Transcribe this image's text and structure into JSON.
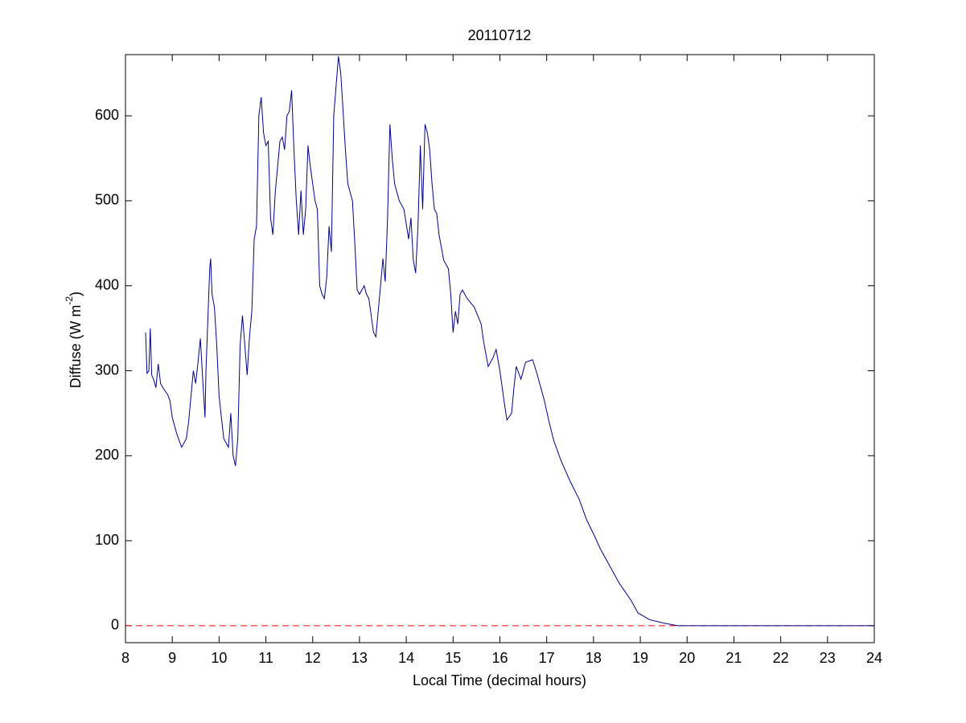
{
  "chart_data": {
    "type": "line",
    "title": "20110712",
    "xlabel": "Local Time (decimal hours)",
    "ylabel": {
      "text": "Diffuse (W m",
      "sup": "-2",
      "tail": ")"
    },
    "xlim": [
      8,
      24
    ],
    "xticks": [
      8,
      9,
      10,
      11,
      12,
      13,
      14,
      15,
      16,
      17,
      18,
      19,
      20,
      21,
      22,
      23,
      24
    ],
    "ylim": [
      -20,
      672
    ],
    "yticks": [
      0,
      100,
      200,
      300,
      400,
      500,
      600
    ],
    "grid": false,
    "reference_line": {
      "value": 0,
      "color": "#ff0000",
      "style": "dashed"
    },
    "series": [
      {
        "color": "#00008b",
        "x": [
          8.43,
          8.46,
          8.5,
          8.53,
          8.56,
          8.6,
          8.65,
          8.7,
          8.75,
          8.8,
          8.9,
          8.95,
          9.0,
          9.1,
          9.2,
          9.3,
          9.35,
          9.45,
          9.5,
          9.55,
          9.6,
          9.65,
          9.7,
          9.72,
          9.8,
          9.82,
          9.85,
          9.9,
          9.95,
          10.0,
          10.1,
          10.15,
          10.2,
          10.25,
          10.3,
          10.35,
          10.4,
          10.45,
          10.5,
          10.55,
          10.6,
          10.65,
          10.7,
          10.75,
          10.8,
          10.85,
          10.9,
          10.95,
          11.0,
          11.05,
          11.1,
          11.15,
          11.2,
          11.3,
          11.35,
          11.4,
          11.45,
          11.5,
          11.55,
          11.6,
          11.65,
          11.7,
          11.75,
          11.8,
          11.85,
          11.9,
          11.95,
          12.0,
          12.05,
          12.1,
          12.15,
          12.2,
          12.25,
          12.3,
          12.35,
          12.4,
          12.45,
          12.55,
          12.6,
          12.7,
          12.75,
          12.85,
          12.9,
          12.95,
          13.0,
          13.1,
          13.15,
          13.2,
          13.3,
          13.35,
          13.45,
          13.5,
          13.55,
          13.6,
          13.65,
          13.7,
          13.75,
          13.85,
          13.95,
          14.05,
          14.1,
          14.15,
          14.2,
          14.25,
          14.3,
          14.35,
          14.4,
          14.45,
          14.5,
          14.55,
          14.6,
          14.65,
          14.7,
          14.8,
          14.9,
          14.95,
          15.0,
          15.05,
          15.1,
          15.15,
          15.2,
          15.3,
          15.45,
          15.6,
          15.65,
          15.75,
          15.85,
          15.92,
          16.0,
          16.1,
          16.15,
          16.25,
          16.3,
          16.35,
          16.45,
          16.55,
          16.7,
          16.8,
          16.95,
          17.05,
          17.15,
          17.3,
          17.5,
          17.7,
          17.85,
          18.0,
          18.15,
          18.35,
          18.55,
          18.8,
          18.95,
          19.2,
          19.5,
          19.8,
          20.2,
          20.5,
          21,
          22,
          23,
          24
        ],
        "values": [
          345,
          297,
          300,
          350,
          295,
          290,
          280,
          308,
          285,
          280,
          272,
          265,
          245,
          225,
          210,
          220,
          240,
          300,
          285,
          310,
          338,
          290,
          245,
          300,
          420,
          432,
          390,
          375,
          330,
          270,
          220,
          215,
          210,
          250,
          200,
          188,
          220,
          330,
          365,
          330,
          295,
          340,
          370,
          455,
          470,
          600,
          622,
          580,
          565,
          570,
          480,
          460,
          510,
          570,
          575,
          560,
          600,
          605,
          630,
          560,
          500,
          460,
          512,
          460,
          490,
          565,
          540,
          520,
          500,
          490,
          400,
          390,
          385,
          410,
          470,
          440,
          600,
          670,
          650,
          560,
          520,
          500,
          450,
          395,
          390,
          400,
          390,
          385,
          345,
          340,
          400,
          432,
          405,
          480,
          590,
          550,
          520,
          500,
          490,
          455,
          480,
          430,
          415,
          470,
          565,
          490,
          590,
          580,
          560,
          520,
          490,
          485,
          460,
          430,
          420,
          390,
          345,
          370,
          355,
          390,
          395,
          385,
          375,
          355,
          335,
          305,
          315,
          325,
          300,
          260,
          242,
          250,
          280,
          305,
          290,
          310,
          313,
          295,
          265,
          240,
          218,
          195,
          170,
          148,
          125,
          108,
          90,
          70,
          50,
          30,
          15,
          7,
          3,
          0,
          0,
          0,
          0,
          0,
          0,
          0
        ]
      }
    ]
  }
}
